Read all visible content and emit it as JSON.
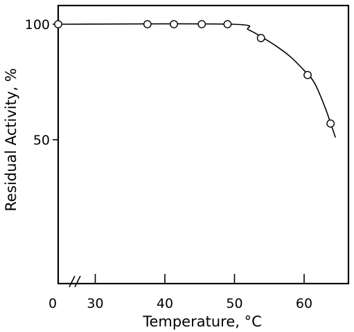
{
  "chart_data": {
    "type": "line",
    "xlabel": "Temperature, °C",
    "ylabel": "Residual Activity, %",
    "x_axis_break": true,
    "x_ticks": [
      {
        "value": 0,
        "label": "0"
      },
      {
        "value": 30,
        "label": "30"
      },
      {
        "value": 40,
        "label": "40"
      },
      {
        "value": 50,
        "label": "50"
      },
      {
        "value": 60,
        "label": "60"
      }
    ],
    "y_ticks": [
      {
        "value": 100,
        "label": "100"
      },
      {
        "value": 50,
        "label": "50"
      }
    ],
    "xlim": [
      25,
      65
    ],
    "ylim": [
      0,
      110
    ],
    "grid": false,
    "points": [
      {
        "x": 0,
        "y": 100
      },
      {
        "x": 37.5,
        "y": 100
      },
      {
        "x": 41.3,
        "y": 100
      },
      {
        "x": 45.3,
        "y": 100
      },
      {
        "x": 49.0,
        "y": 100
      },
      {
        "x": 53.8,
        "y": 94
      },
      {
        "x": 60.5,
        "y": 78
      },
      {
        "x": 63.8,
        "y": 57
      }
    ],
    "curve": [
      {
        "x": 0,
        "y": 100
      },
      {
        "x": 49.5,
        "y": 100
      },
      {
        "x": 52,
        "y": 97.6
      },
      {
        "x": 54,
        "y": 94.3
      },
      {
        "x": 56,
        "y": 90.5
      },
      {
        "x": 58,
        "y": 86
      },
      {
        "x": 60,
        "y": 80
      },
      {
        "x": 61.5,
        "y": 74.5
      },
      {
        "x": 63,
        "y": 64
      },
      {
        "x": 64.5,
        "y": 51
      }
    ]
  }
}
